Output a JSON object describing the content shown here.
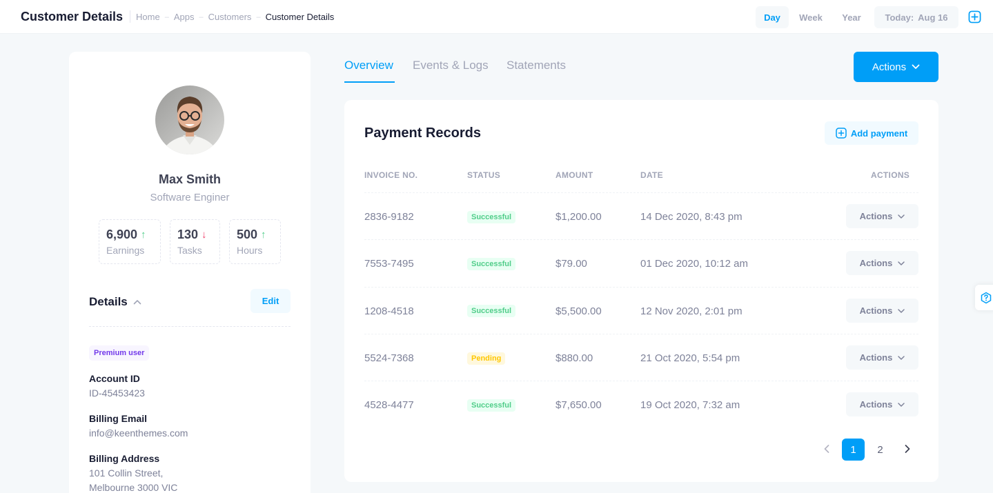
{
  "header": {
    "title": "Customer Details",
    "breadcrumb": [
      "Home",
      "Apps",
      "Customers",
      "Customer Details"
    ],
    "range": {
      "day": "Day",
      "week": "Week",
      "year": "Year",
      "selected": "Day"
    },
    "today_label": "Today:",
    "today_value": "Aug 16"
  },
  "profile": {
    "name": "Max Smith",
    "role": "Software Enginer",
    "stats": [
      {
        "value": "6,900",
        "label": "Earnings",
        "trend": "up"
      },
      {
        "value": "130",
        "label": "Tasks",
        "trend": "down"
      },
      {
        "value": "500",
        "label": "Hours",
        "trend": "up"
      }
    ],
    "details_title": "Details",
    "edit_label": "Edit",
    "badge": "Premium user",
    "fields": {
      "account_id_label": "Account ID",
      "account_id": "ID-45453423",
      "billing_email_label": "Billing Email",
      "billing_email": "info@keenthemes.com",
      "billing_address_label": "Billing Address",
      "billing_address_line1": "101 Collin Street,",
      "billing_address_line2": "Melbourne 3000 VIC"
    }
  },
  "tabs": [
    {
      "label": "Overview",
      "active": true
    },
    {
      "label": "Events & Logs",
      "active": false
    },
    {
      "label": "Statements",
      "active": false
    }
  ],
  "actions_label": "Actions",
  "payments": {
    "title": "Payment Records",
    "add_label": "Add payment",
    "columns": [
      "INVOICE NO.",
      "STATUS",
      "AMOUNT",
      "DATE",
      "ACTIONS"
    ],
    "rows": [
      {
        "invoice": "2836-9182",
        "status": "Successful",
        "amount": "$1,200.00",
        "date": "14 Dec 2020, 8:43 pm",
        "action": "Actions"
      },
      {
        "invoice": "7553-7495",
        "status": "Successful",
        "amount": "$79.00",
        "date": "01 Dec 2020, 10:12 am",
        "action": "Actions"
      },
      {
        "invoice": "1208-4518",
        "status": "Successful",
        "amount": "$5,500.00",
        "date": "12 Nov 2020, 2:01 pm",
        "action": "Actions"
      },
      {
        "invoice": "5524-7368",
        "status": "Pending",
        "amount": "$880.00",
        "date": "21 Oct 2020, 5:54 pm",
        "action": "Actions"
      },
      {
        "invoice": "4528-4477",
        "status": "Successful",
        "amount": "$7,650.00",
        "date": "19 Oct 2020, 7:32 am",
        "action": "Actions"
      }
    ],
    "pagination": {
      "pages": [
        "1",
        "2"
      ],
      "current": "1"
    }
  },
  "colors": {
    "primary": "#009ef7",
    "success": "#50cd89",
    "danger": "#f1416c",
    "warning": "#ffc700",
    "purple": "#7239ea"
  }
}
